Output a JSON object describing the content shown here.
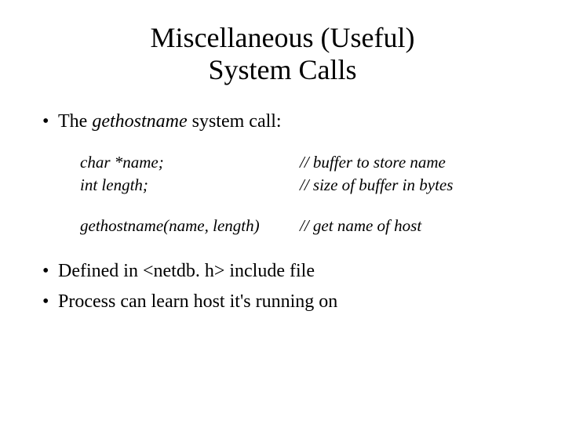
{
  "title_line1": "Miscellaneous (Useful)",
  "title_line2": "System Calls",
  "bullet1_prefix": "The ",
  "bullet1_italic": "gethostname",
  "bullet1_suffix": " system call:",
  "code": {
    "row1_left": "char *name;",
    "row1_right": "// buffer to store name",
    "row2_left": "int length;",
    "row2_right": "// size of buffer in bytes",
    "row3_left": "gethostname(name, length)",
    "row3_right": "// get name of host"
  },
  "bullet2": "Defined in <netdb. h> include file",
  "bullet3": "Process can learn host it's running on"
}
